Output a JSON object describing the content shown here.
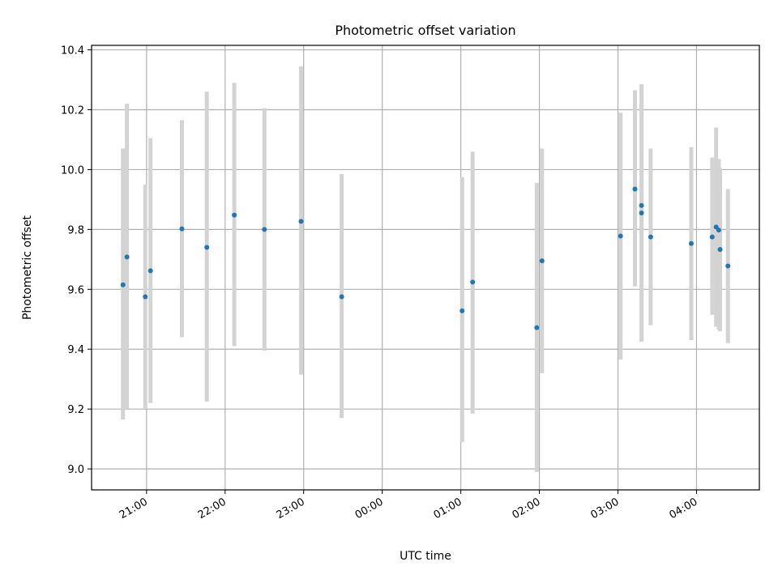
{
  "chart_data": {
    "type": "scatter",
    "title": "Photometric offset variation",
    "xlabel": "UTC time",
    "ylabel": "Photometric offset",
    "x_axis_type": "time",
    "xlim": [
      "20:18",
      "04:48"
    ],
    "ylim": [
      8.93,
      10.415
    ],
    "grid": true,
    "x_tick_labels": [
      "21:00",
      "22:00",
      "23:00",
      "00:00",
      "01:00",
      "02:00",
      "03:00",
      "04:00"
    ],
    "y_ticks": [
      9.0,
      9.2,
      9.4,
      9.6,
      9.8,
      10.0,
      10.2,
      10.4
    ],
    "y_tick_labels": [
      "9.0",
      "9.2",
      "9.4",
      "9.6",
      "9.8",
      "10.0",
      "10.2",
      "10.4"
    ],
    "point_color": "#1f77b4",
    "errorbar_color": "#d3d3d3",
    "points": [
      {
        "x": "20:42",
        "y": 9.615,
        "low": 9.165,
        "high": 10.07
      },
      {
        "x": "20:45",
        "y": 9.708,
        "low": 9.2,
        "high": 10.22
      },
      {
        "x": "20:59",
        "y": 9.575,
        "low": 9.2,
        "high": 9.95
      },
      {
        "x": "21:03",
        "y": 9.662,
        "low": 9.22,
        "high": 10.105
      },
      {
        "x": "21:27",
        "y": 9.802,
        "low": 9.44,
        "high": 10.165
      },
      {
        "x": "21:46",
        "y": 9.74,
        "low": 9.225,
        "high": 10.26
      },
      {
        "x": "22:07",
        "y": 9.848,
        "low": 9.41,
        "high": 10.29
      },
      {
        "x": "22:30",
        "y": 9.8,
        "low": 9.395,
        "high": 10.205
      },
      {
        "x": "22:58",
        "y": 9.827,
        "low": 9.315,
        "high": 10.345
      },
      {
        "x": "23:29",
        "y": 9.575,
        "low": 9.17,
        "high": 9.985
      },
      {
        "x": "01:01",
        "y": 9.528,
        "low": 9.09,
        "high": 9.975
      },
      {
        "x": "01:09",
        "y": 9.624,
        "low": 9.185,
        "high": 10.06
      },
      {
        "x": "01:58",
        "y": 9.472,
        "low": 8.99,
        "high": 9.955
      },
      {
        "x": "02:02",
        "y": 9.695,
        "low": 9.32,
        "high": 10.07
      },
      {
        "x": "03:02",
        "y": 9.778,
        "low": 9.365,
        "high": 10.19
      },
      {
        "x": "03:13",
        "y": 9.935,
        "low": 9.61,
        "high": 10.265
      },
      {
        "x": "03:18",
        "y": 9.88,
        "low": 9.425,
        "high": 10.285
      },
      {
        "x": "03:18",
        "y": 9.855,
        "low": 9.43,
        "high": 10.28
      },
      {
        "x": "03:25",
        "y": 9.775,
        "low": 9.48,
        "high": 10.07
      },
      {
        "x": "03:56",
        "y": 9.753,
        "low": 9.43,
        "high": 10.075
      },
      {
        "x": "04:12",
        "y": 9.775,
        "low": 9.515,
        "high": 10.04
      },
      {
        "x": "04:15",
        "y": 9.808,
        "low": 9.475,
        "high": 10.14
      },
      {
        "x": "04:17",
        "y": 9.798,
        "low": 9.465,
        "high": 10.035
      },
      {
        "x": "04:18",
        "y": 9.733,
        "low": 9.46,
        "high": 10.005
      },
      {
        "x": "04:24",
        "y": 9.678,
        "low": 9.42,
        "high": 9.935
      }
    ]
  }
}
